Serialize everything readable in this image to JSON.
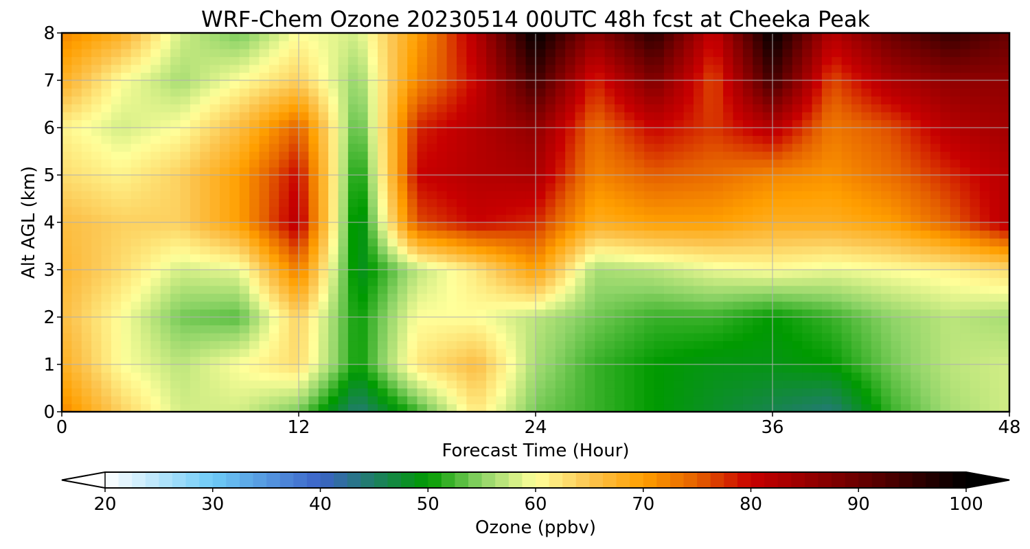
{
  "chart_data": {
    "type": "heatmap",
    "title": "WRF-Chem Ozone  20230514 00UTC 48h fcst at Cheeka Peak",
    "xlabel": "Forecast Time (Hour)",
    "ylabel": "Alt AGL (km)",
    "xlim": [
      0,
      48
    ],
    "ylim": [
      0,
      8
    ],
    "x_ticks": [
      "0",
      "12",
      "24",
      "36",
      "48"
    ],
    "y_ticks": [
      "0",
      "1",
      "2",
      "3",
      "4",
      "5",
      "6",
      "7",
      "8"
    ],
    "grid": true,
    "x": [
      0,
      3,
      6,
      9,
      12,
      15,
      18,
      21,
      24,
      27,
      30,
      33,
      36,
      39,
      42,
      45,
      48
    ],
    "y": [
      0,
      1,
      2,
      3,
      4,
      5,
      6,
      7,
      8
    ],
    "z": [
      [
        72,
        64,
        58,
        58,
        54,
        44,
        52,
        62,
        54,
        52,
        50,
        48,
        46,
        44,
        52,
        56,
        58
      ],
      [
        68,
        60,
        57,
        60,
        63,
        50,
        62,
        66,
        56,
        52,
        50,
        49,
        49,
        50,
        54,
        57,
        58
      ],
      [
        66,
        60,
        54,
        53,
        64,
        50,
        60,
        60,
        57,
        54,
        52,
        52,
        50,
        52,
        55,
        57,
        56
      ],
      [
        67,
        63,
        58,
        59,
        73,
        48,
        57,
        62,
        70,
        56,
        57,
        59,
        60,
        59,
        60,
        61,
        63
      ],
      [
        66,
        64,
        64,
        70,
        82,
        47,
        76,
        80,
        78,
        68,
        70,
        70,
        68,
        68,
        70,
        75,
        82
      ],
      [
        63,
        61,
        64,
        70,
        80,
        49,
        80,
        82,
        83,
        72,
        75,
        74,
        72,
        71,
        74,
        78,
        82
      ],
      [
        61,
        58,
        60,
        66,
        75,
        52,
        78,
        82,
        86,
        74,
        80,
        77,
        82,
        73,
        76,
        82,
        84
      ],
      [
        68,
        60,
        56,
        60,
        64,
        55,
        72,
        80,
        94,
        78,
        88,
        76,
        94,
        76,
        83,
        86,
        86
      ],
      [
        72,
        68,
        58,
        54,
        60,
        58,
        70,
        82,
        100,
        86,
        96,
        80,
        100,
        82,
        90,
        95,
        90
      ]
    ],
    "colorbar": {
      "label": "Ozone  (ppbv)",
      "min": 20,
      "max": 100,
      "ticks": [
        "20",
        "30",
        "40",
        "50",
        "60",
        "70",
        "80",
        "90",
        "100"
      ],
      "extend": "both",
      "palette": [
        {
          "v": 20,
          "c": "#ffffff"
        },
        {
          "v": 30,
          "c": "#6ecbf7"
        },
        {
          "v": 40,
          "c": "#3c63c8"
        },
        {
          "v": 50,
          "c": "#009a00"
        },
        {
          "v": 55,
          "c": "#8fd468"
        },
        {
          "v": 60,
          "c": "#ffff9a"
        },
        {
          "v": 65,
          "c": "#fcc550"
        },
        {
          "v": 70,
          "c": "#ff9f00"
        },
        {
          "v": 75,
          "c": "#e56000"
        },
        {
          "v": 80,
          "c": "#c80000"
        },
        {
          "v": 90,
          "c": "#6a0000"
        },
        {
          "v": 100,
          "c": "#000000"
        }
      ]
    }
  }
}
